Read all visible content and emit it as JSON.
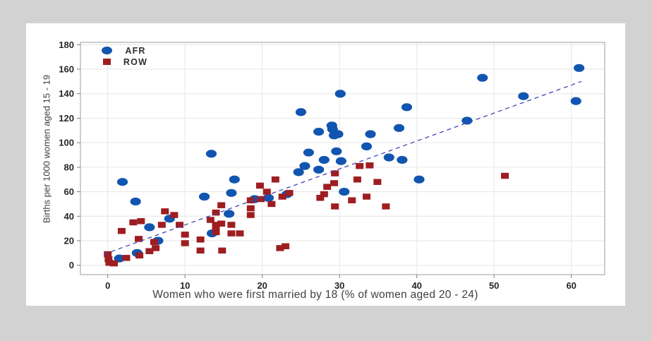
{
  "chart_data": {
    "type": "scatter",
    "title": "",
    "xlabel": "Women who were first married by 18 (% of women aged 20 - 24)",
    "ylabel": "Births per 1000 women aged 15 - 19",
    "xlim": [
      -3.5,
      64.5
    ],
    "ylim": [
      -8,
      181
    ],
    "x_ticks": [
      0,
      10,
      20,
      30,
      40,
      50,
      60
    ],
    "y_ticks": [
      0,
      20,
      40,
      60,
      80,
      100,
      120,
      140,
      160,
      180
    ],
    "grid": true,
    "legend_position": "top-left-inside",
    "series": [
      {
        "name": "AFR",
        "marker": "circle",
        "color": "#1155b0",
        "points": [
          [
            1.5,
            5.5
          ],
          [
            3.8,
            10
          ],
          [
            1.9,
            68
          ],
          [
            3.6,
            52
          ],
          [
            5.4,
            31
          ],
          [
            8,
            38
          ],
          [
            6.5,
            20
          ],
          [
            13.5,
            26
          ],
          [
            12.5,
            56
          ],
          [
            13.4,
            91
          ],
          [
            16.4,
            70
          ],
          [
            16,
            59
          ],
          [
            15.7,
            42
          ],
          [
            19,
            54
          ],
          [
            20.8,
            55
          ],
          [
            23.2,
            58
          ],
          [
            24.7,
            76
          ],
          [
            25.5,
            81
          ],
          [
            27.3,
            78
          ],
          [
            25,
            125
          ],
          [
            30.1,
            140
          ],
          [
            29,
            114
          ],
          [
            29.1,
            111
          ],
          [
            27.3,
            109
          ],
          [
            29.3,
            106
          ],
          [
            29.8,
            107
          ],
          [
            26,
            92
          ],
          [
            29.6,
            93
          ],
          [
            28,
            86
          ],
          [
            30.2,
            85
          ],
          [
            30.6,
            60
          ],
          [
            34,
            107
          ],
          [
            33.5,
            97
          ],
          [
            36.4,
            88
          ],
          [
            38.1,
            86
          ],
          [
            40.3,
            70
          ],
          [
            38.7,
            129
          ],
          [
            37.7,
            112
          ],
          [
            46.5,
            118
          ],
          [
            48.5,
            153
          ],
          [
            53.8,
            138
          ],
          [
            61,
            161
          ],
          [
            60.6,
            134
          ]
        ]
      },
      {
        "name": "ROW",
        "marker": "square",
        "color": "#9e1d20",
        "points": [
          [
            0,
            9
          ],
          [
            0.1,
            5
          ],
          [
            0.2,
            2
          ],
          [
            0.8,
            1.5
          ],
          [
            2.4,
            6
          ],
          [
            4.1,
            8
          ],
          [
            5.4,
            11.5
          ],
          [
            6.2,
            14
          ],
          [
            1.8,
            28
          ],
          [
            3.3,
            35
          ],
          [
            4.3,
            36
          ],
          [
            7.4,
            44
          ],
          [
            8.6,
            41
          ],
          [
            7,
            33
          ],
          [
            9.3,
            33
          ],
          [
            4,
            21.5
          ],
          [
            6,
            19
          ],
          [
            10,
            25
          ],
          [
            10,
            18
          ],
          [
            12,
            21
          ],
          [
            13.3,
            37
          ],
          [
            14,
            31
          ],
          [
            12,
            12
          ],
          [
            14.7,
            49
          ],
          [
            14,
            43
          ],
          [
            14.7,
            34
          ],
          [
            16,
            33
          ],
          [
            14,
            33
          ],
          [
            16,
            26
          ],
          [
            17.1,
            26
          ],
          [
            14,
            27
          ],
          [
            14.8,
            12
          ],
          [
            19.7,
            65
          ],
          [
            20.6,
            60
          ],
          [
            18.5,
            53
          ],
          [
            19.8,
            54
          ],
          [
            21.2,
            50
          ],
          [
            18.5,
            46.5
          ],
          [
            18.5,
            41
          ],
          [
            21.7,
            70
          ],
          [
            22.6,
            56
          ],
          [
            23.5,
            59
          ],
          [
            22.3,
            14
          ],
          [
            23,
            15.5
          ],
          [
            28.4,
            64
          ],
          [
            27.5,
            55
          ],
          [
            28,
            58
          ],
          [
            29.4,
            48
          ],
          [
            29.4,
            75
          ],
          [
            32.6,
            81
          ],
          [
            33.9,
            81.5
          ],
          [
            29.3,
            67
          ],
          [
            32.3,
            70
          ],
          [
            34.9,
            68
          ],
          [
            31.6,
            53
          ],
          [
            33.5,
            56
          ],
          [
            36,
            48
          ],
          [
            51.4,
            73
          ]
        ]
      }
    ],
    "trendline": {
      "style": "dashed",
      "color": "#4343b8",
      "from": [
        -0.5,
        9
      ],
      "to": [
        61.3,
        150
      ]
    }
  },
  "colors": {
    "page_background": "#d2d2d2",
    "panel_background": "#ffffff",
    "gridline": "#e6e6e6",
    "plot_border": "#9b9b9b",
    "tick": "#7a7a7a",
    "tick_label": "#262626",
    "axis_title": "#3f3f3f"
  }
}
